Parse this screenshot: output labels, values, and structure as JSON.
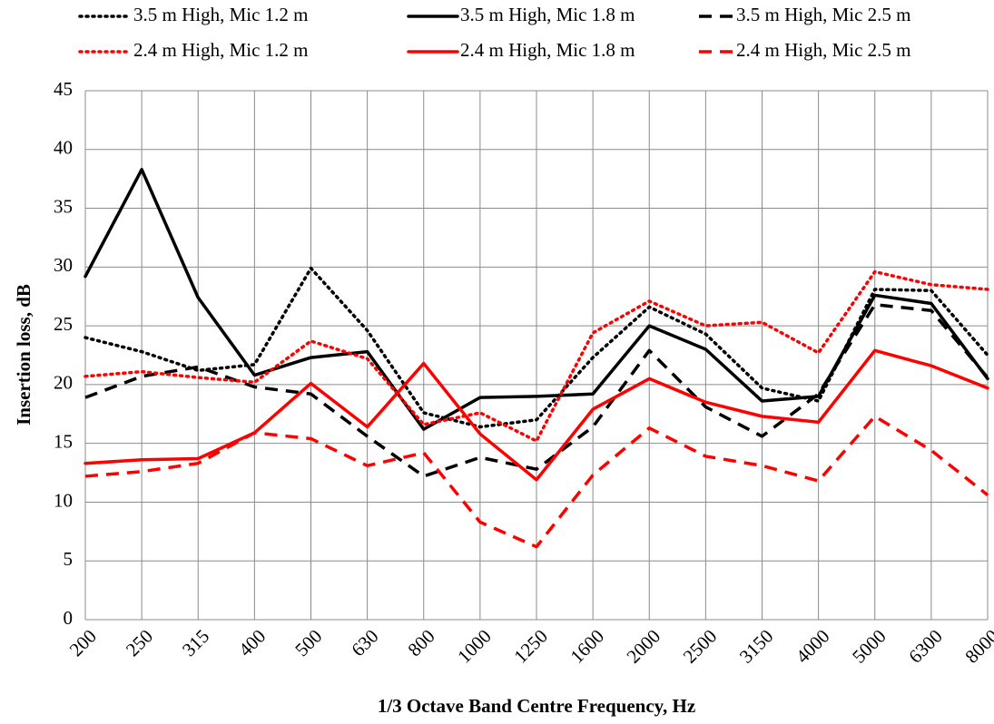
{
  "chart_data": {
    "type": "line",
    "xlabel": "1/3 Octave Band Centre Frequency, Hz",
    "ylabel": "Insertion loss, dB",
    "categories": [
      "200",
      "250",
      "315",
      "400",
      "500",
      "630",
      "800",
      "1000",
      "1250",
      "1600",
      "2000",
      "2500",
      "3150",
      "4000",
      "5000",
      "6300",
      "8000"
    ],
    "ylim": [
      0,
      45
    ],
    "yticks": [
      0,
      5,
      10,
      15,
      20,
      25,
      30,
      35,
      40,
      45
    ],
    "grid": true,
    "legend": "top",
    "series": [
      {
        "name": "3.5 m High, Mic 1.2 m",
        "color": "#000000",
        "style": "dotted",
        "values": [
          24,
          22.8,
          21.2,
          21.7,
          29.9,
          24.6,
          17.6,
          16.4,
          17,
          22.3,
          26.6,
          24.3,
          19.7,
          18.6,
          28.1,
          28,
          22.5
        ]
      },
      {
        "name": "3.5 m High, Mic 1.8 m",
        "color": "#000000",
        "style": "solid",
        "values": [
          29.2,
          38.3,
          27.4,
          20.8,
          22.3,
          22.8,
          16.2,
          18.9,
          19,
          19.2,
          25,
          23,
          18.6,
          19,
          27.6,
          26.9,
          20.5
        ]
      },
      {
        "name": "3.5 m High, Mic 2.5 m",
        "color": "#000000",
        "style": "dashed",
        "values": [
          18.9,
          20.7,
          21.5,
          19.8,
          19.2,
          15.6,
          12.2,
          13.8,
          12.8,
          16.4,
          22.9,
          18.1,
          15.6,
          19.2,
          26.8,
          26.3,
          20.6
        ]
      },
      {
        "name": "2.4 m High, Mic 1.2 m",
        "color": "#ff0000",
        "style": "dotted",
        "values": [
          20.7,
          21.1,
          20.6,
          20.2,
          23.7,
          22.2,
          16.6,
          17.6,
          15.2,
          24.4,
          27.1,
          25,
          25.3,
          22.7,
          29.6,
          28.5,
          28.1
        ]
      },
      {
        "name": "2.4 m High, Mic 1.8 m",
        "color": "#ff0000",
        "style": "solid",
        "values": [
          13.3,
          13.6,
          13.7,
          15.9,
          20.1,
          16.4,
          21.8,
          15.8,
          11.9,
          17.9,
          20.5,
          18.5,
          17.3,
          16.8,
          22.9,
          21.6,
          19.7
        ]
      },
      {
        "name": "2.4 m High, Mic 2.5 m",
        "color": "#ff0000",
        "style": "dashed",
        "values": [
          12.2,
          12.6,
          13.3,
          15.9,
          15.4,
          13.1,
          14.2,
          8.3,
          6.2,
          12.3,
          16.3,
          13.9,
          13.1,
          11.8,
          17.3,
          14.4,
          10.6
        ]
      }
    ]
  }
}
